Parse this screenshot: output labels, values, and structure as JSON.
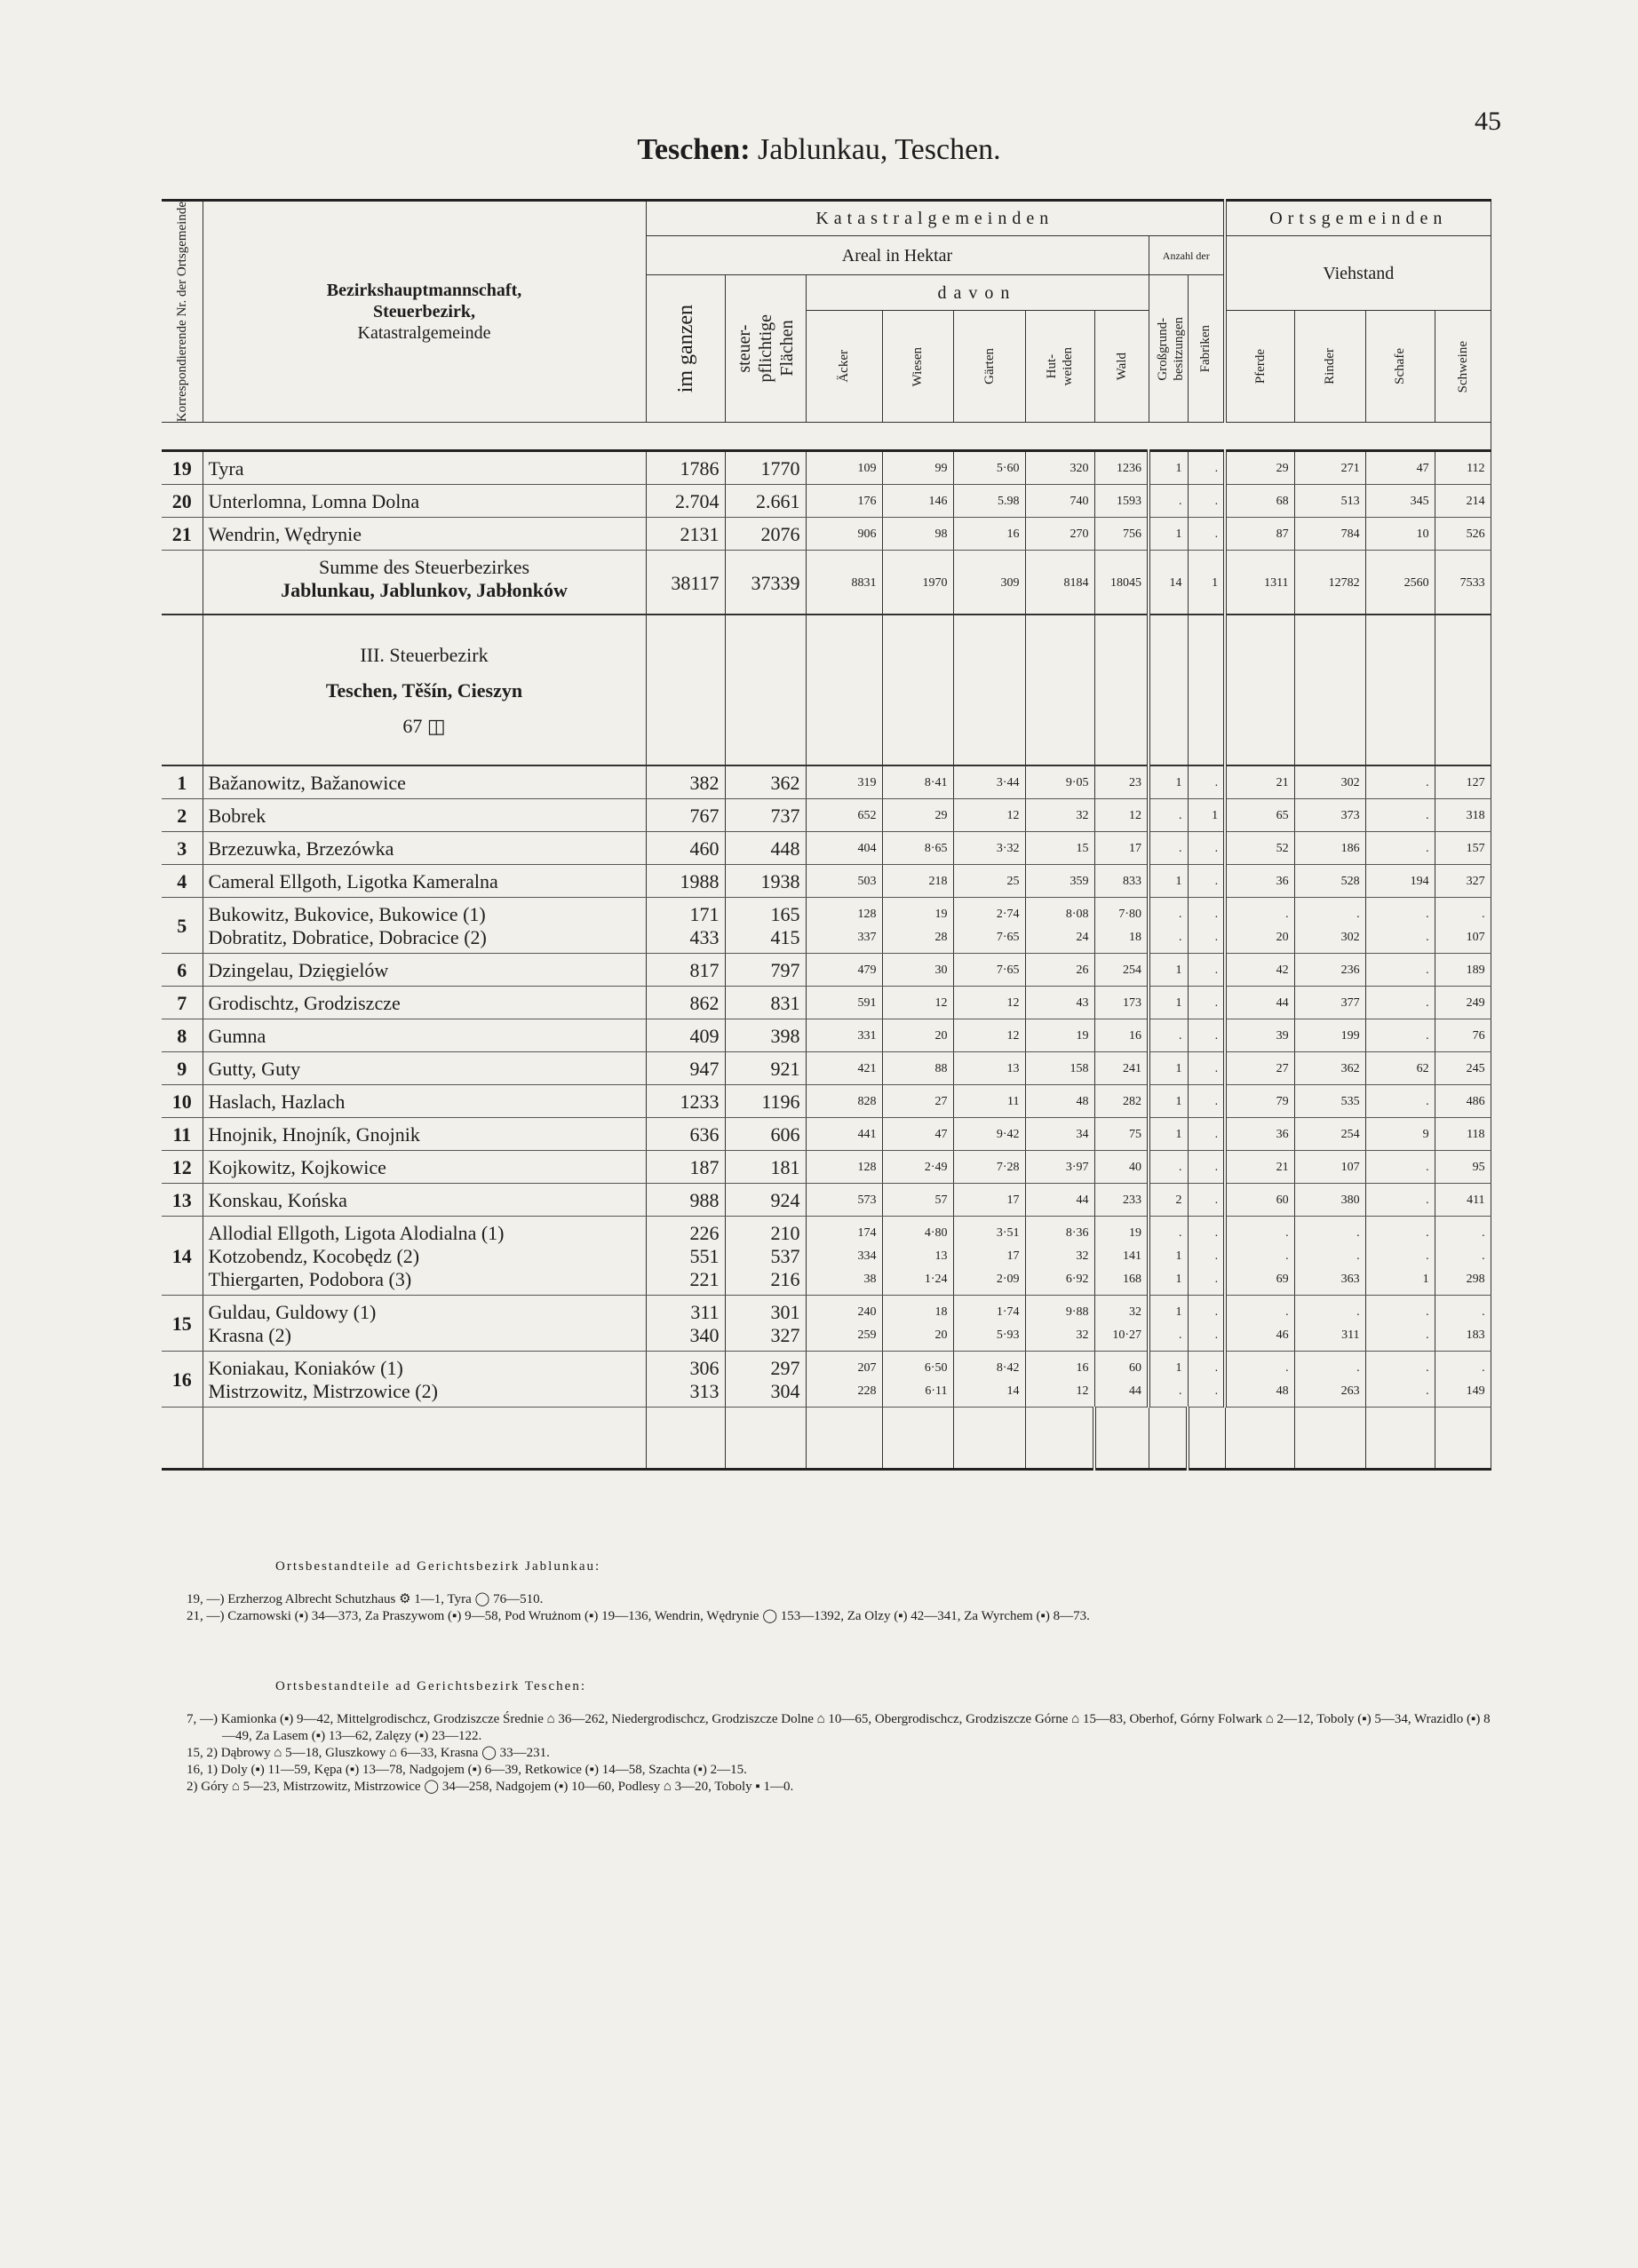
{
  "page_number": "45",
  "title": {
    "bold": "Teschen:",
    "rest": "Jablunkau, Teschen."
  },
  "table": {
    "headers": {
      "nr": "Korrespondierende Nr. der Ortsgemeinde",
      "name": [
        "Bezirkshauptmannschaft,",
        "Steuerbezirk,",
        "Katastralgemeinde"
      ],
      "katastral": "Katastralgemeinden",
      "ortsgemeinden": "Ortsgemeinden",
      "areal": "Areal in Hektar",
      "anzahl": "Anzahl der",
      "viehstand": "Viehstand",
      "im_ganzen": "im ganzen",
      "steuerpflichtig": "steuer-\npflichtige\nFlächen",
      "davon": "davon",
      "grossgrund": "Großgrund-\nbesitzungen",
      "fabriken": "Fabriken",
      "sub": [
        "Äcker",
        "Wiesen",
        "Gärten",
        "Hut-\nweiden",
        "Wald"
      ],
      "vieh": [
        "Pferde",
        "Rinder",
        "Schafe",
        "Schweine"
      ]
    },
    "rows": [
      {
        "nr": "19",
        "cells": [
          "Tyra",
          "1786",
          "1770",
          "109",
          "99",
          "5·60",
          "320",
          "1236",
          "1",
          ".",
          "29",
          "271",
          "47",
          "112"
        ]
      },
      {
        "nr": "20",
        "cells": [
          "Unterlomna, Lomna Dolna",
          "2.704",
          "2.661",
          "176",
          "146",
          "5.98",
          "740",
          "1593",
          ".",
          ".",
          "68",
          "513",
          "345",
          "214"
        ]
      },
      {
        "nr": "21",
        "cells": [
          "Wendrin, Wędrynie",
          "2131",
          "2076",
          "906",
          "98",
          "16",
          "270",
          "756",
          "1",
          ".",
          "87",
          "784",
          "10",
          "526"
        ]
      },
      {
        "sum": [
          "Summe des Steuerbezirkes",
          "Jablunkau, Jablunkov, Jabłonków"
        ],
        "cells": [
          "38117",
          "37339",
          "8831",
          "1970",
          "309",
          "8184",
          "18045",
          "14",
          "1",
          "1311",
          "12782",
          "2560",
          "7533"
        ]
      },
      {
        "section": [
          "III. Steuerbezirk",
          "Teschen, Těšín, Cieszyn",
          "67 ◫"
        ]
      },
      {
        "nr": "1",
        "cells": [
          "Bažanowitz, Bažanowice",
          "382",
          "362",
          "319",
          "8·41",
          "3·44",
          "9·05",
          "23",
          "1",
          ".",
          "21",
          "302",
          ".",
          "127"
        ]
      },
      {
        "nr": "2",
        "cells": [
          "Bobrek",
          "767",
          "737",
          "652",
          "29",
          "12",
          "32",
          "12",
          ".",
          "1",
          "65",
          "373",
          ".",
          "318"
        ]
      },
      {
        "nr": "3",
        "cells": [
          "Brzezuwka, Brzezówka",
          "460",
          "448",
          "404",
          "8·65",
          "3·32",
          "15",
          "17",
          ".",
          ".",
          "52",
          "186",
          ".",
          "157"
        ]
      },
      {
        "nr": "4",
        "cells": [
          "Cameral Ellgoth, Ligotka Kameralna",
          "1988",
          "1938",
          "503",
          "218",
          "25",
          "359",
          "833",
          "1",
          ".",
          "36",
          "528",
          "194",
          "327"
        ]
      },
      {
        "nr": "5",
        "cells": [
          "Bukowitz, Bukovice, Bukowice (1)\nDobratitz, Dobratice, Dobracice (2)",
          "171\n433",
          "165\n415",
          "128\n337",
          "19\n28",
          "2·74\n7·65",
          "8·08\n24",
          "7·80\n18",
          ".\n.",
          ".\n.",
          ".\n20",
          ".\n302",
          ".\n.",
          ".\n107"
        ]
      },
      {
        "nr": "6",
        "cells": [
          "Dzingelau, Dzięgielów",
          "817",
          "797",
          "479",
          "30",
          "7·65",
          "26",
          "254",
          "1",
          ".",
          "42",
          "236",
          ".",
          "189"
        ]
      },
      {
        "nr": "7",
        "cells": [
          "Grodischtz, Grodziszcze",
          "862",
          "831",
          "591",
          "12",
          "12",
          "43",
          "173",
          "1",
          ".",
          "44",
          "377",
          ".",
          "249"
        ]
      },
      {
        "nr": "8",
        "cells": [
          "Gumna",
          "409",
          "398",
          "331",
          "20",
          "12",
          "19",
          "16",
          ".",
          ".",
          "39",
          "199",
          ".",
          "76"
        ]
      },
      {
        "nr": "9",
        "cells": [
          "Gutty, Guty",
          "947",
          "921",
          "421",
          "88",
          "13",
          "158",
          "241",
          "1",
          ".",
          "27",
          "362",
          "62",
          "245"
        ]
      },
      {
        "nr": "10",
        "cells": [
          "Haslach, Hazlach",
          "1233",
          "1196",
          "828",
          "27",
          "11",
          "48",
          "282",
          "1",
          ".",
          "79",
          "535",
          ".",
          "486"
        ]
      },
      {
        "nr": "11",
        "cells": [
          "Hnojnik, Hnojník, Gnojnik",
          "636",
          "606",
          "441",
          "47",
          "9·42",
          "34",
          "75",
          "1",
          ".",
          "36",
          "254",
          "9",
          "118"
        ]
      },
      {
        "nr": "12",
        "cells": [
          "Kojkowitz, Kojkowice",
          "187",
          "181",
          "128",
          "2·49",
          "7·28",
          "3·97",
          "40",
          ".",
          ".",
          "21",
          "107",
          ".",
          "95"
        ]
      },
      {
        "nr": "13",
        "cells": [
          "Konskau, Końska",
          "988",
          "924",
          "573",
          "57",
          "17",
          "44",
          "233",
          "2",
          ".",
          "60",
          "380",
          ".",
          "411"
        ]
      },
      {
        "nr": "14",
        "cells": [
          "Allodial Ellgoth, Ligota Alodialna (1)\nKotzobendz, Kocobędz (2)\nThiergarten, Podobora (3)",
          "226\n551\n221",
          "210\n537\n216",
          "174\n334\n38",
          "4·80\n13\n1·24",
          "3·51\n17\n2·09",
          "8·36\n32\n6·92",
          "19\n141\n168",
          ".\n1\n1",
          ".\n.\n.",
          ".\n.\n69",
          ".\n.\n363",
          ".\n.\n1",
          ".\n.\n298"
        ]
      },
      {
        "nr": "15",
        "cells": [
          "Guldau, Guldowy (1)\nKrasna (2)",
          "311\n340",
          "301\n327",
          "240\n259",
          "18\n20",
          "1·74\n5·93",
          "9·88\n32",
          "32\n10·27",
          "1\n.",
          ".\n.",
          ".\n46",
          ".\n311",
          ".\n.",
          ".\n183"
        ]
      },
      {
        "nr": "16",
        "cells": [
          "Koniakau, Koniaków (1)\nMistrzowitz, Mistrzowice (2)",
          "306\n313",
          "297\n304",
          "207\n228",
          "6·50\n6·11",
          "8·42\n14",
          "16\n12",
          "60\n44",
          "1\n.",
          ".\n.",
          ".\n48",
          ".\n263",
          ".\n.",
          ".\n149"
        ]
      }
    ]
  },
  "notes": [
    {
      "heading": "Ortsbestandteile ad Gerichtsbezirk Jablunkau:",
      "lines": [
        "19, —) Erzherzog Albrecht Schutzhaus ⚙ 1—1, Tyra ◯ 76—510.",
        "21, —) Czarnowski (▪) 34—373, Za Praszywom (▪) 9—58, Pod Wrużnom (▪) 19—136, Wendrin, Wędrynie ◯ 153—1392, Za Olzy (▪) 42—341, Za Wyrchem (▪) 8—73."
      ]
    },
    {
      "heading": "Ortsbestandteile ad Gerichtsbezirk Teschen:",
      "lines": [
        "7, —) Kamionka (▪) 9—42, Mittelgrodischcz, Grodziszcze Średnie ⌂ 36—262, Niedergrodischcz, Grodziszcze Dolne ⌂ 10—65, Obergrodischcz, Grodziszcze Górne ⌂ 15—83, Oberhof, Górny Folwark ⌂ 2—12, Toboly (▪) 5—34, Wrazidlo (▪) 8—49, Za Lasem (▪) 13—62, Zalęzy (▪) 23—122.",
        "15, 2) Dąbrowy ⌂ 5—18, Gluszkowy ⌂ 6—33, Krasna ◯ 33—231.",
        "16, 1) Doly (▪) 11—59, Kępa (▪) 13—78, Nadgojem (▪) 6—39, Retkowice (▪) 14—58, Szachta (▪) 2—15.",
        "2) Góry ⌂ 5—23, Mistrzowitz, Mistrzowice ◯ 34—258, Nadgojem (▪) 10—60, Podlesy ⌂ 3—20, Toboly ▪ 1—0."
      ]
    }
  ]
}
